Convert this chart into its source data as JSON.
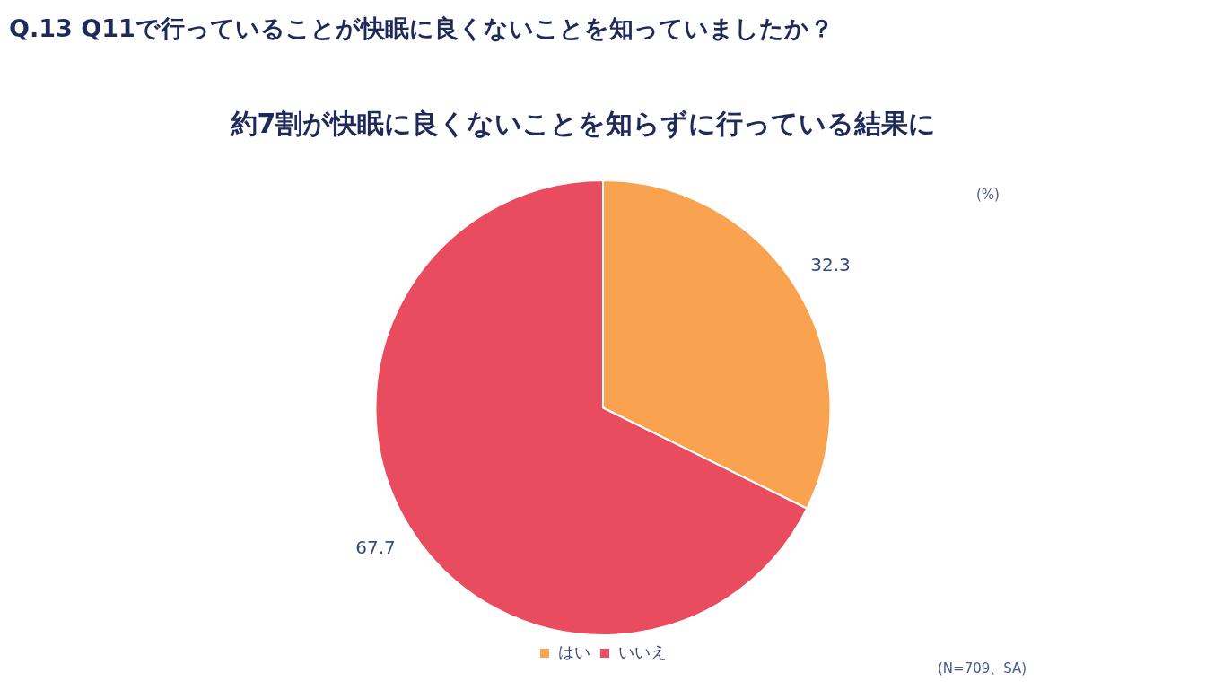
{
  "chart_data": {
    "type": "pie",
    "title": "Q.13 Q11で行っていることが快眠に良くないことを知っていましたか？",
    "subtitle": "約7割が快眠に良くないことを知らずに行っている結果に",
    "categories": [
      "はい",
      "いいえ"
    ],
    "values": [
      32.3,
      67.7
    ],
    "colors": [
      "#f9a350",
      "#e84c5e"
    ],
    "data_labels": true,
    "legend": "bottom",
    "annotations": [
      "(%)",
      "(N=709、SA)"
    ]
  }
}
